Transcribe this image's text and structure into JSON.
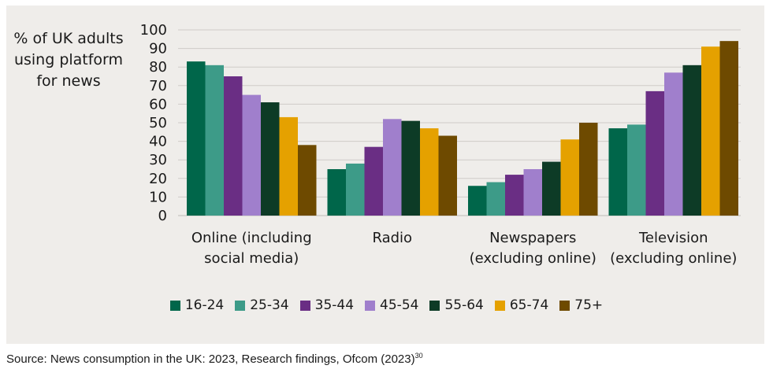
{
  "chart_data": {
    "type": "bar",
    "ylabel": "% of UK adults\nusing platform\nfor news",
    "ylim": [
      0,
      100
    ],
    "yticks": [
      "0",
      "10",
      "20",
      "30",
      "40",
      "50",
      "60",
      "70",
      "80",
      "90",
      "100"
    ],
    "grid": true,
    "legend_position": "bottom",
    "categories": [
      "Online (including\nsocial media)",
      "Radio",
      "Newspapers\n(excluding online)",
      "Television\n(excluding online)"
    ],
    "series": [
      {
        "name": "16-24",
        "color": "#00664a",
        "values": [
          83,
          25,
          16,
          47
        ]
      },
      {
        "name": "25-34",
        "color": "#3d9b88",
        "values": [
          81,
          28,
          18,
          49
        ]
      },
      {
        "name": "35-44",
        "color": "#6a2e84",
        "values": [
          75,
          37,
          22,
          67
        ]
      },
      {
        "name": "45-54",
        "color": "#a07fcc",
        "values": [
          65,
          52,
          25,
          77
        ]
      },
      {
        "name": "55-64",
        "color": "#0d3b26",
        "values": [
          61,
          51,
          29,
          81
        ]
      },
      {
        "name": "65-74",
        "color": "#e5a100",
        "values": [
          53,
          47,
          41,
          91
        ]
      },
      {
        "name": "75+",
        "color": "#6e4a00",
        "values": [
          38,
          43,
          50,
          94
        ]
      }
    ]
  },
  "source": {
    "text": "Source: News consumption in the UK: 2023, Research findings, Ofcom (2023)",
    "footnote": "30"
  }
}
